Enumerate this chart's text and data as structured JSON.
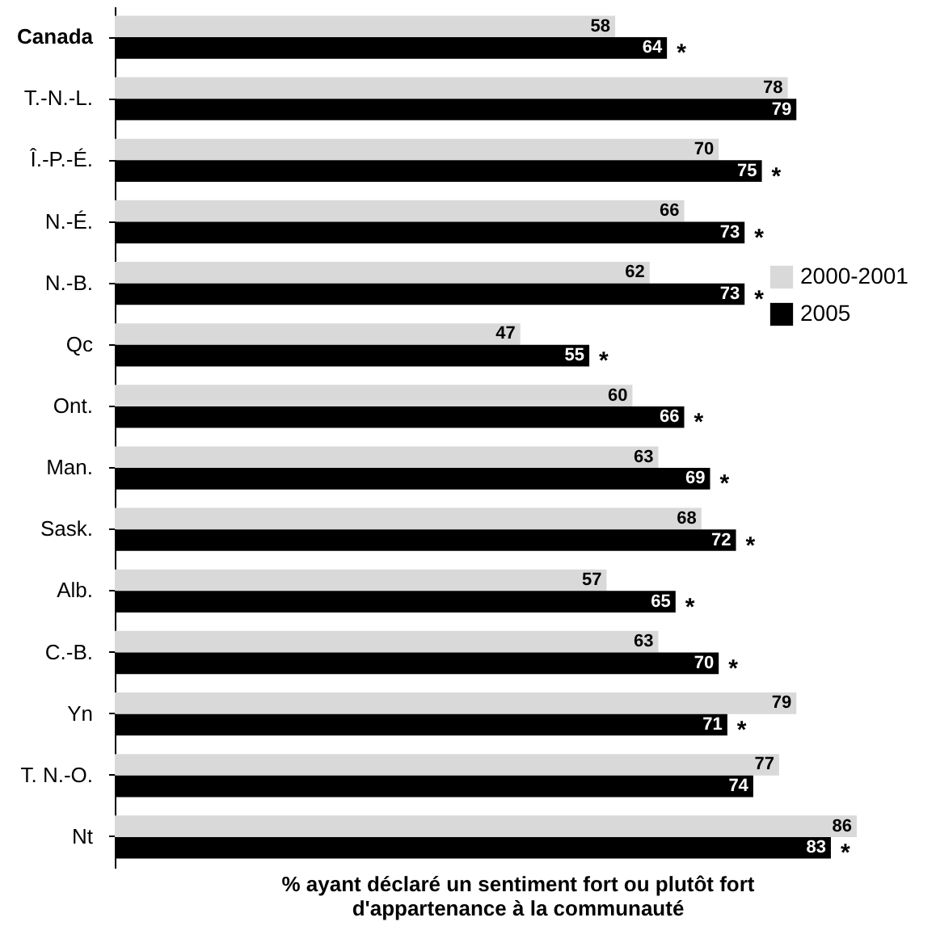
{
  "chart_data": {
    "type": "bar",
    "orientation": "horizontal",
    "xlabel": "% ayant déclaré un sentiment fort ou plutôt fort d'appartenance à la communauté",
    "categories": [
      "Canada",
      "T.-N.-L.",
      "Î.-P.-É.",
      "N.-É.",
      "N.-B.",
      "Qc",
      "Ont.",
      "Man.",
      "Sask.",
      "Alb.",
      "C.-B.",
      "Yn",
      "T. N.-O.",
      "Nt"
    ],
    "series": [
      {
        "name": "2000-2001",
        "color": "#d9d9d9",
        "values": [
          58,
          78,
          70,
          66,
          62,
          47,
          60,
          63,
          68,
          57,
          63,
          79,
          77,
          86
        ]
      },
      {
        "name": "2005",
        "color": "#000000",
        "values": [
          64,
          79,
          75,
          73,
          73,
          55,
          66,
          69,
          72,
          65,
          70,
          71,
          74,
          83
        ]
      }
    ],
    "data_labels": true,
    "legend": "right",
    "grid": false,
    "annotations": [
      {
        "text": "*",
        "x": 64,
        "y": "Canada"
      },
      {
        "text": "*",
        "x": 75,
        "y": "Î.-P.-É."
      },
      {
        "text": "*",
        "x": 73,
        "y": "N.-É."
      },
      {
        "text": "*",
        "x": 73,
        "y": "N.-B."
      },
      {
        "text": "*",
        "x": 55,
        "y": "Qc"
      },
      {
        "text": "*",
        "x": 66,
        "y": "Ont."
      },
      {
        "text": "*",
        "x": 69,
        "y": "Man."
      },
      {
        "text": "*",
        "x": 72,
        "y": "Sask."
      },
      {
        "text": "*",
        "x": 65,
        "y": "Alb."
      },
      {
        "text": "*",
        "x": 70,
        "y": "C.-B."
      },
      {
        "text": "*",
        "x": 71,
        "y": "Yn"
      },
      {
        "text": "*",
        "x": 83,
        "y": "Nt"
      }
    ]
  }
}
